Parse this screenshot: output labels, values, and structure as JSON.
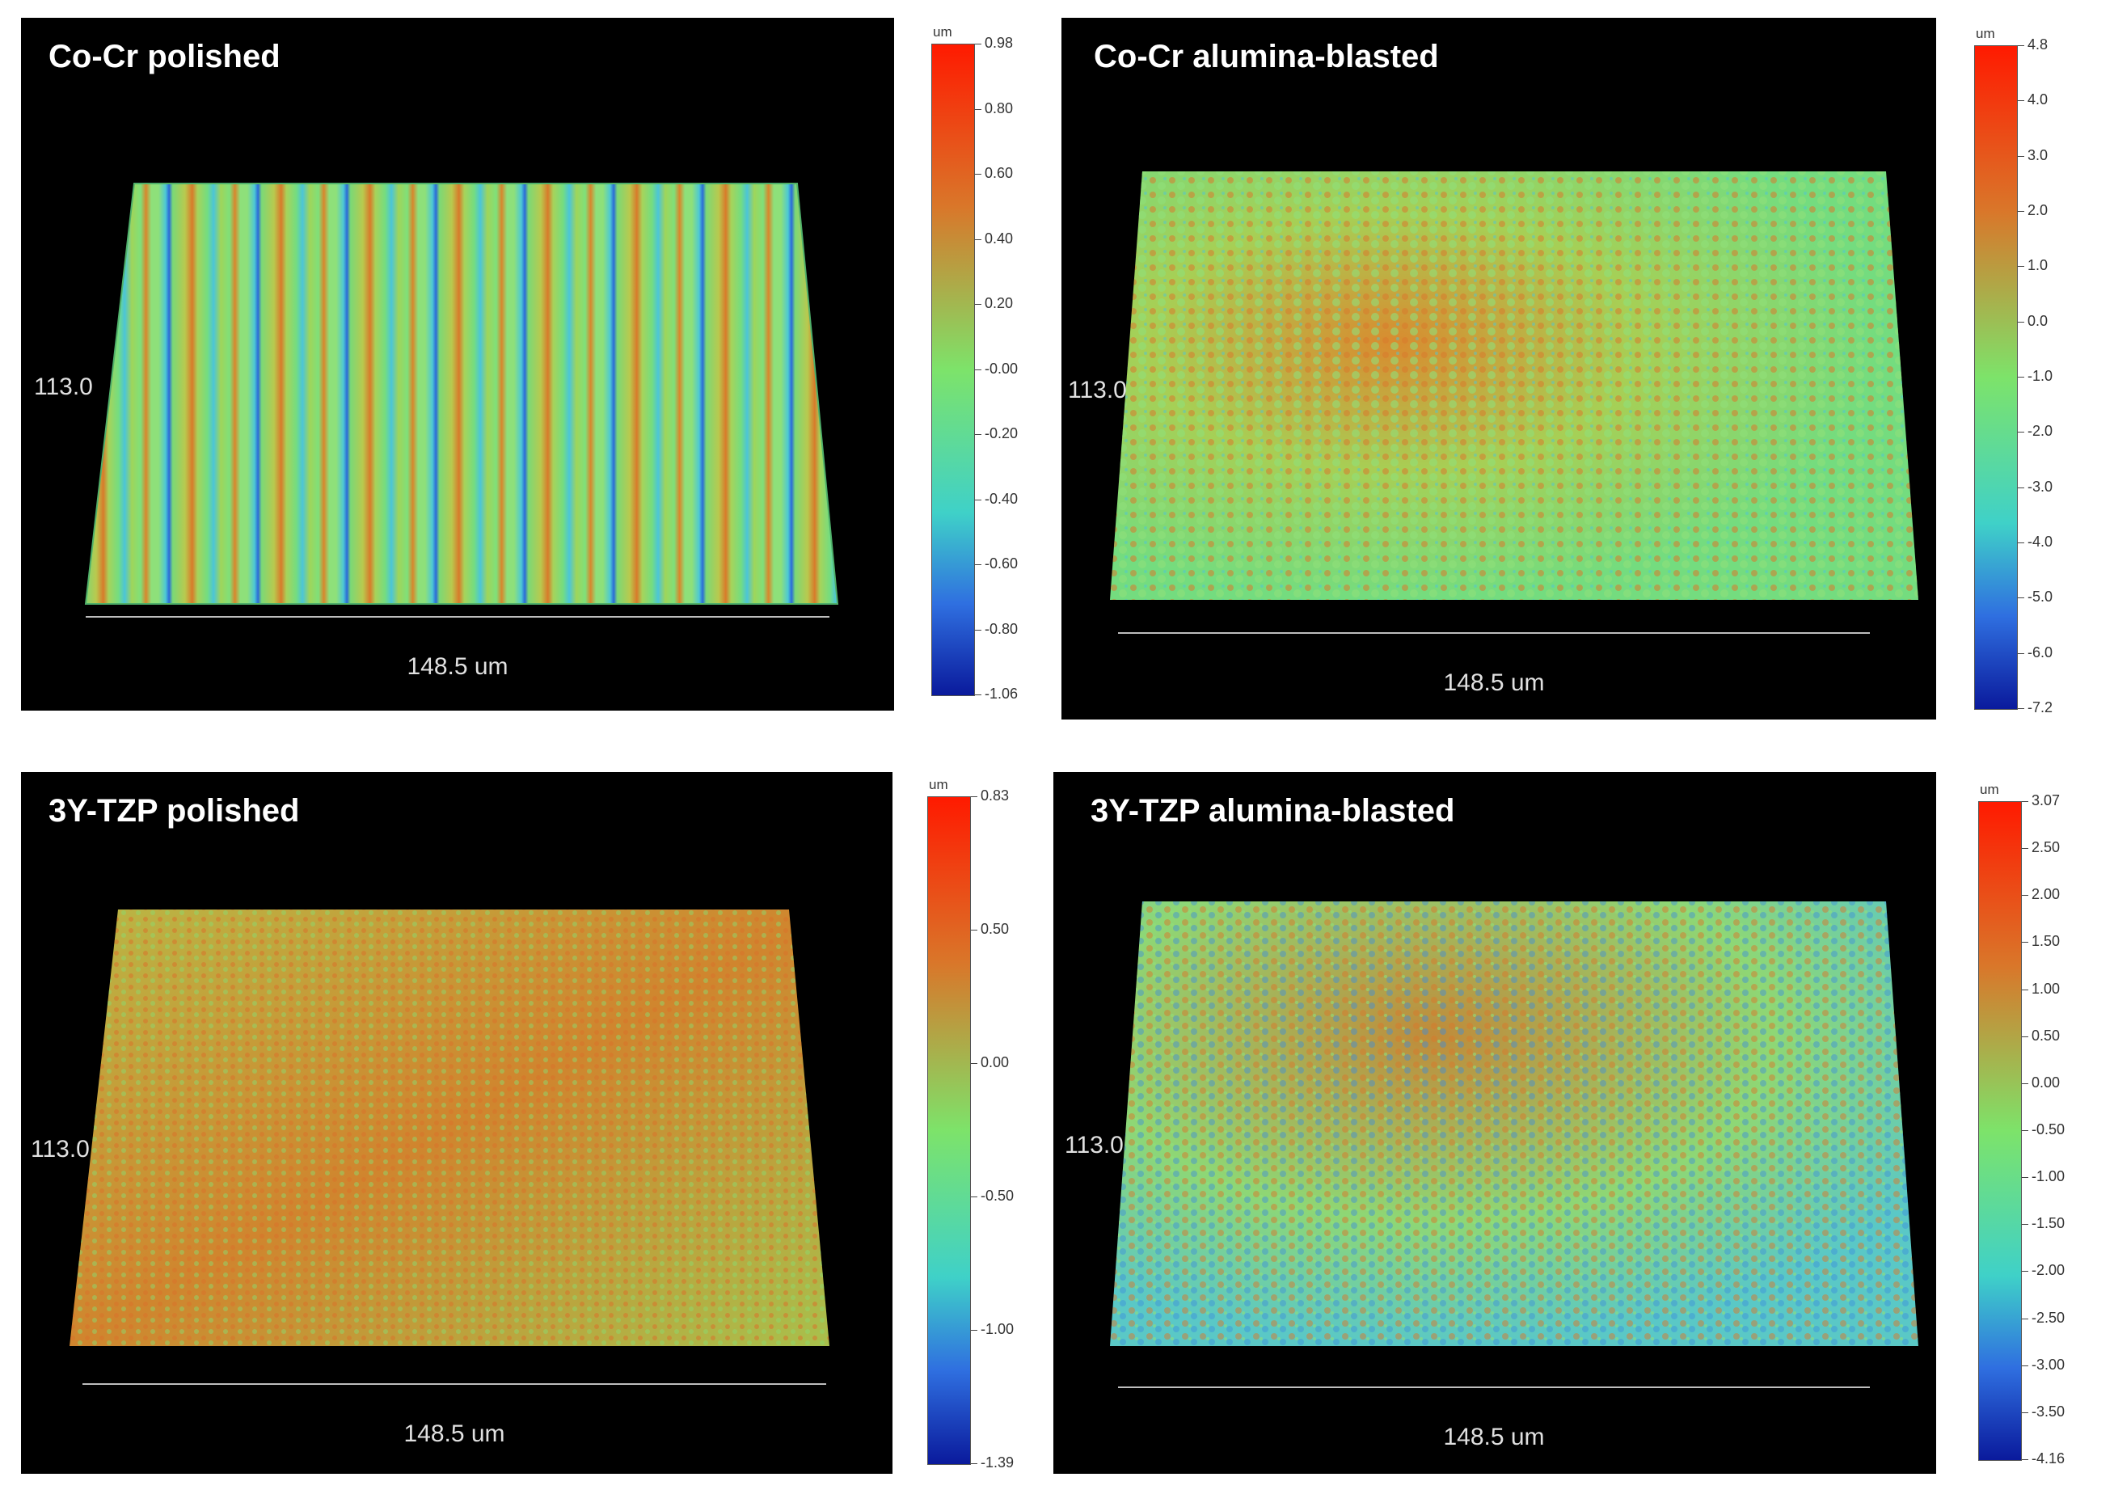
{
  "panels": [
    {
      "title": "Co-Cr polished",
      "y_dimension": "113.0",
      "x_dimension": "148.5 um",
      "texture": "striated",
      "scale": {
        "unit": "um",
        "ticks": [
          "0.98",
          "0.80",
          "0.60",
          "0.40",
          "0.20",
          "-0.00",
          "-0.20",
          "-0.40",
          "-0.60",
          "-0.80",
          "-1.06"
        ]
      }
    },
    {
      "title": "Co-Cr  alumina-blasted",
      "y_dimension": "113.0",
      "x_dimension": "148.5 um",
      "texture": "rough",
      "scale": {
        "unit": "um",
        "ticks": [
          "4.8",
          "4.0",
          "3.0",
          "2.0",
          "1.0",
          "0.0",
          "-1.0",
          "-2.0",
          "-3.0",
          "-4.0",
          "-5.0",
          "-6.0",
          "-7.2"
        ]
      }
    },
    {
      "title": "3Y-TZP polished",
      "y_dimension": "113.0",
      "x_dimension": "148.5 um",
      "texture": "granular",
      "scale": {
        "unit": "um",
        "ticks": [
          "0.83",
          "0.50",
          "0.00",
          "-0.50",
          "-1.00",
          "-1.39"
        ]
      }
    },
    {
      "title": "3Y-TZP alumina-blasted",
      "y_dimension": "113.0",
      "x_dimension": "148.5 um",
      "texture": "rough-blue",
      "scale": {
        "unit": "um",
        "ticks": [
          "3.07",
          "2.50",
          "2.00",
          "1.50",
          "1.00",
          "0.50",
          "0.00",
          "-0.50",
          "-1.00",
          "-1.50",
          "-2.00",
          "-2.50",
          "-3.00",
          "-3.50",
          "-4.16"
        ]
      }
    }
  ],
  "colors": {
    "panel_background": "#000000",
    "high": "#ff1a00",
    "mid_high": "#d9772a",
    "mid": "#7de36a",
    "mid_low": "#3fd1c8",
    "low": "#0a1a9c"
  }
}
